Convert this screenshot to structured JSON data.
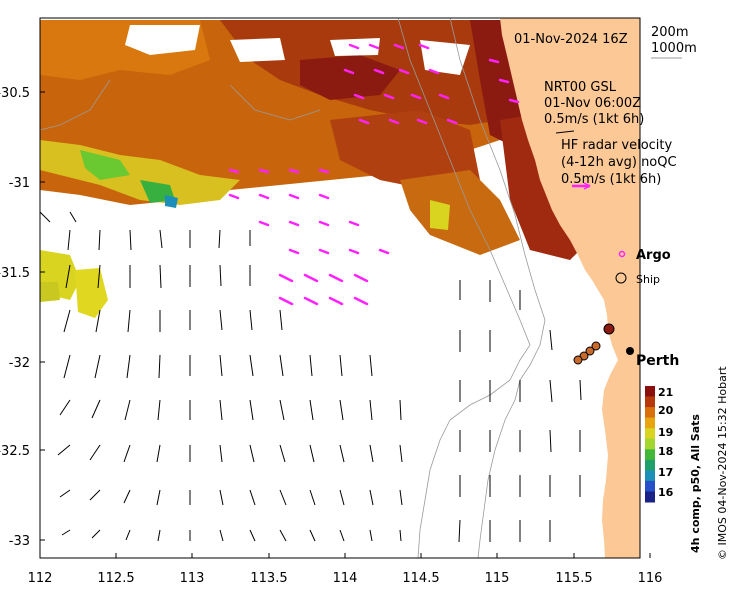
{
  "map": {
    "date_label": "01-Nov-2024 16Z",
    "depth_legend": [
      "200m",
      "1000m"
    ],
    "model_label": [
      "NRT00 GSL",
      "01-Nov 06:00Z",
      "0.5m/s (1kt 6h)"
    ],
    "radar_label": [
      "HF radar velocity",
      "(4-12h avg) noQC",
      "0.5m/s (1kt 6h)"
    ],
    "argo_label": "Argo",
    "ship_label": "Ship",
    "city_label": "Perth",
    "colorbar": {
      "title": "4h comp, p50, All Sats",
      "ticks": [
        "21",
        "20",
        "19",
        "18",
        "17",
        "16"
      ],
      "colors": [
        "#8b0f0f",
        "#b8380e",
        "#d9700c",
        "#e8a510",
        "#d8d420",
        "#a4d630",
        "#42b838",
        "#1fa06a",
        "#1c8fb8",
        "#2550c8",
        "#1a2288"
      ]
    },
    "credit": "© IMOS 04-Nov-2024 15:32 Hobart",
    "x_ticks": [
      "112",
      "112.5",
      "113",
      "113.5",
      "114",
      "114.5",
      "115",
      "115.5",
      "116"
    ],
    "y_ticks": [
      "-30.5",
      "-31",
      "-31.5",
      "-32",
      "-32.5",
      "-33"
    ],
    "colors": {
      "land": "#fcc896",
      "radar_arrow": "#ff22ff",
      "model_arrow": "#000000"
    }
  }
}
